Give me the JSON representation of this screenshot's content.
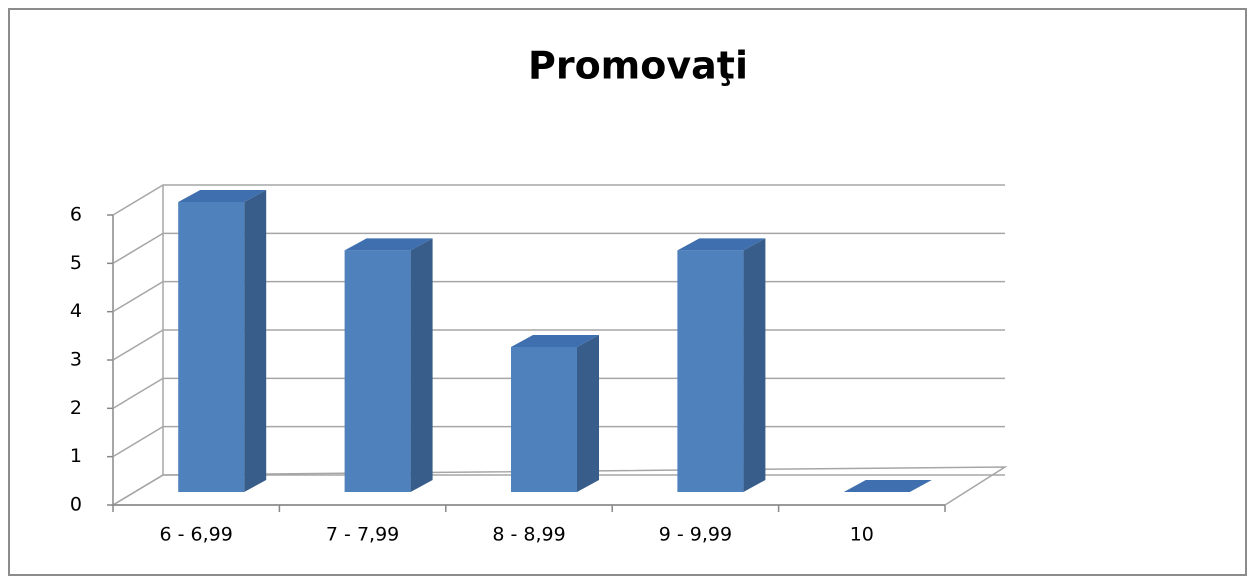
{
  "chart_data": {
    "type": "bar3d",
    "title": "Promovaţi",
    "categories": [
      "6 - 6,99",
      "7 - 7,99",
      "8 - 8,99",
      "9 - 9,99",
      "10"
    ],
    "values": [
      6,
      5,
      3,
      5,
      0
    ],
    "color": "#4f81bd",
    "ylim": [
      0,
      6
    ],
    "yticks": [
      0,
      1,
      2,
      3,
      4,
      5,
      6
    ],
    "grid": true
  }
}
